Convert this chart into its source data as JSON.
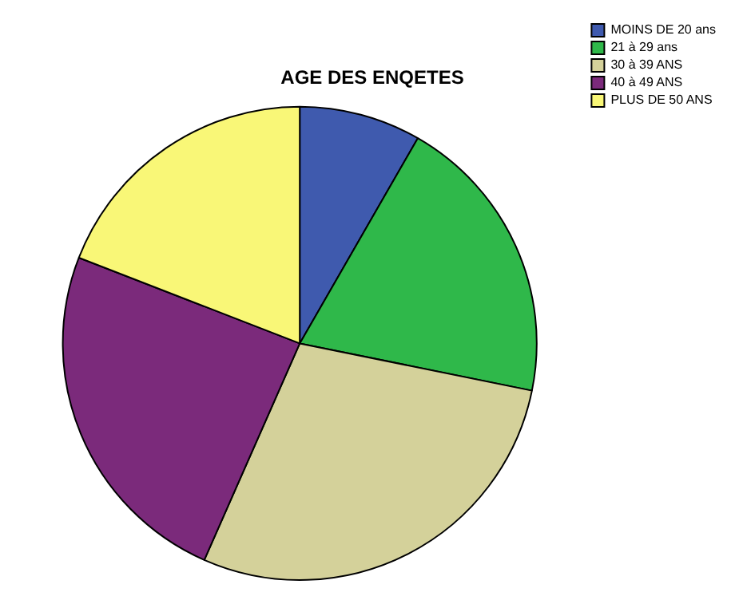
{
  "chart_data": {
    "type": "pie",
    "title": "AGE DES ENQETES",
    "categories": [
      "MOINS DE 20 ans",
      "21 à 29 ans",
      "30 à 39 ANS",
      "40 à 49 ANS",
      "PLUS DE 50 ANS"
    ],
    "values": [
      8.3,
      19.9,
      28.4,
      24.3,
      19.1
    ],
    "colors": [
      "#3f5aae",
      "#2fb84a",
      "#d4d19a",
      "#7b2a7b",
      "#f9f777"
    ],
    "legend": "top right"
  }
}
